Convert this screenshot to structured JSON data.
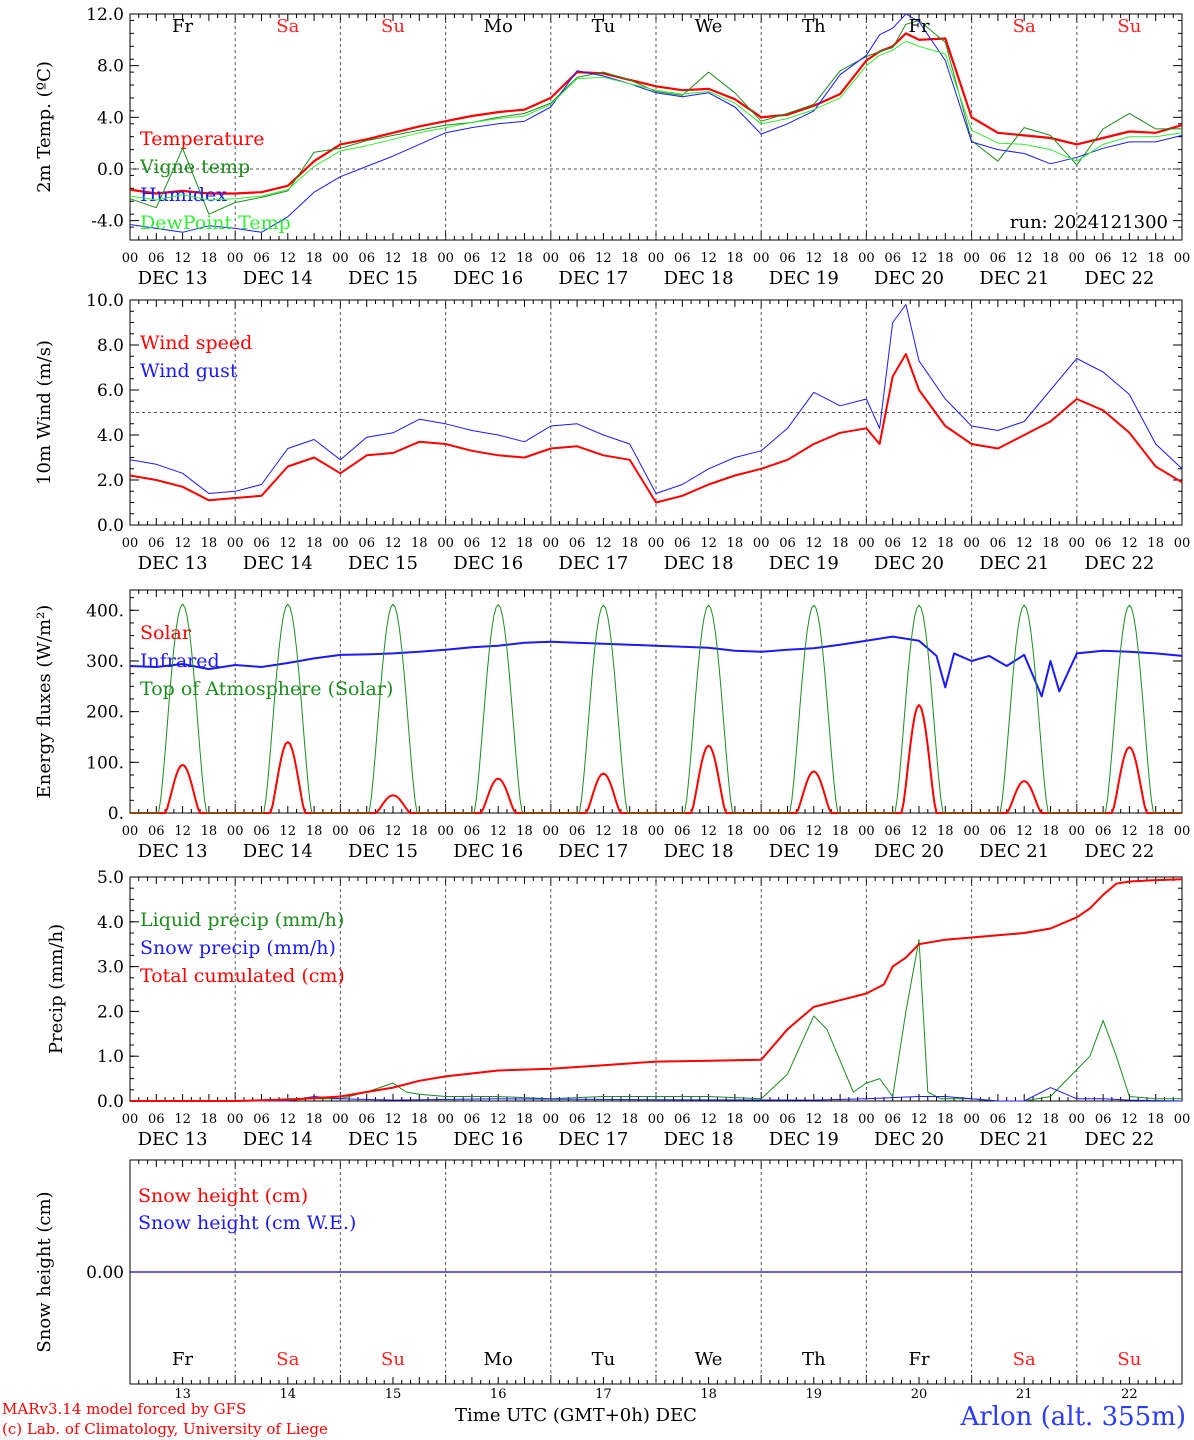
{
  "colors": {
    "red": "#ff0000",
    "green": "#1e8c1e",
    "blue": "#1a1aff",
    "light_green": "#33ee33",
    "weekend": "#ff2020",
    "station": "#2b3bff"
  },
  "days": [
    {
      "abbr": "Fr",
      "date": "DEC 13",
      "num": "13",
      "weekend": false
    },
    {
      "abbr": "Sa",
      "date": "DEC 14",
      "num": "14",
      "weekend": true
    },
    {
      "abbr": "Su",
      "date": "DEC 15",
      "num": "15",
      "weekend": true
    },
    {
      "abbr": "Mo",
      "date": "DEC 16",
      "num": "16",
      "weekend": false
    },
    {
      "abbr": "Tu",
      "date": "DEC 17",
      "num": "17",
      "weekend": false
    },
    {
      "abbr": "We",
      "date": "DEC 18",
      "num": "18",
      "weekend": false
    },
    {
      "abbr": "Th",
      "date": "DEC 19",
      "num": "19",
      "weekend": false
    },
    {
      "abbr": "Fr",
      "date": "DEC 20",
      "num": "20",
      "weekend": false
    },
    {
      "abbr": "Sa",
      "date": "DEC 21",
      "num": "21",
      "weekend": true
    },
    {
      "abbr": "Su",
      "date": "DEC 22",
      "num": "22",
      "weekend": true
    }
  ],
  "hour_labels": [
    "00",
    "06",
    "12",
    "18"
  ],
  "footer": {
    "model_line": "MARv3.14 model forced by GFS",
    "copyright_line": "(c) Lab. of Climatology, University of Liege",
    "time_axis_title": "Time UTC (GMT+0h) DEC",
    "station": "Arlon (alt. 355m)"
  },
  "chart_data": [
    {
      "type": "line",
      "ylabel": "2m Temp. (ºC)",
      "ylim": [
        -5.5,
        12.0
      ],
      "yticks": [
        -4.0,
        0.0,
        4.0,
        8.0,
        12.0
      ],
      "ytick_labels": [
        "-4.0",
        "0.0",
        "4.0",
        "8.0",
        "12.0"
      ],
      "dashed_reference": 0.0,
      "annotation": "run: 2024121300",
      "xlim_hours": [
        0,
        240
      ],
      "series": [
        {
          "name": "Temperature",
          "color": "red",
          "width": 2.2,
          "x": [
            0,
            6,
            12,
            18,
            24,
            30,
            36,
            42,
            48,
            54,
            60,
            66,
            72,
            78,
            84,
            90,
            96,
            102,
            108,
            114,
            120,
            126,
            132,
            138,
            144,
            150,
            156,
            162,
            168,
            171,
            174,
            177,
            180,
            186,
            192,
            198,
            204,
            210,
            216,
            222,
            228,
            234,
            240
          ],
          "y": [
            -1.6,
            -1.9,
            -1.7,
            -1.9,
            -1.9,
            -1.8,
            -1.3,
            0.6,
            1.9,
            2.3,
            2.8,
            3.3,
            3.7,
            4.1,
            4.4,
            4.6,
            5.5,
            7.5,
            7.4,
            6.9,
            6.4,
            6.1,
            6.2,
            5.4,
            4.0,
            4.2,
            4.9,
            5.8,
            8.4,
            9.1,
            9.5,
            10.5,
            10.0,
            10.1,
            4.0,
            2.8,
            2.6,
            2.4,
            1.9,
            2.4,
            2.9,
            2.8,
            3.4
          ]
        },
        {
          "name": "Vigne temp",
          "color": "green",
          "width": 1,
          "x": [
            0,
            6,
            12,
            18,
            24,
            30,
            36,
            42,
            48,
            54,
            60,
            66,
            72,
            78,
            84,
            90,
            96,
            102,
            108,
            114,
            120,
            126,
            132,
            138,
            144,
            150,
            156,
            162,
            168,
            171,
            174,
            177,
            180,
            186,
            192,
            198,
            204,
            210,
            216,
            222,
            228,
            234,
            240
          ],
          "y": [
            -2.3,
            -3.0,
            1.6,
            -3.5,
            -2.6,
            -2.2,
            -1.7,
            1.3,
            1.6,
            2.2,
            2.6,
            3.0,
            3.4,
            3.6,
            4.0,
            4.3,
            5.1,
            7.1,
            7.5,
            6.9,
            6.0,
            5.7,
            7.5,
            5.9,
            3.7,
            4.3,
            5.0,
            7.6,
            8.7,
            9.1,
            9.4,
            11.2,
            11.5,
            9.8,
            2.2,
            0.6,
            3.2,
            2.6,
            0.3,
            3.1,
            4.3,
            3.1,
            3.1
          ]
        },
        {
          "name": "Humidex",
          "color": "blue",
          "width": 1,
          "x": [
            0,
            6,
            12,
            18,
            24,
            30,
            36,
            42,
            48,
            54,
            60,
            66,
            72,
            78,
            84,
            90,
            96,
            102,
            108,
            114,
            120,
            126,
            132,
            138,
            144,
            150,
            156,
            162,
            168,
            171,
            174,
            177,
            180,
            186,
            192,
            198,
            204,
            210,
            216,
            222,
            228,
            234,
            240
          ],
          "y": [
            -4.3,
            -4.6,
            -4.9,
            -4.4,
            -4.6,
            -4.9,
            -3.7,
            -1.8,
            -0.6,
            0.2,
            1.0,
            1.9,
            2.8,
            3.2,
            3.5,
            3.7,
            4.8,
            7.6,
            7.2,
            6.6,
            5.9,
            5.6,
            5.9,
            4.8,
            2.7,
            3.5,
            4.5,
            7.3,
            8.8,
            10.4,
            10.9,
            12.0,
            11.4,
            8.4,
            2.1,
            1.5,
            1.2,
            0.4,
            0.9,
            1.6,
            2.1,
            2.1,
            2.6
          ]
        },
        {
          "name": "DewPoint Temp",
          "color": "light_green",
          "width": 1,
          "x": [
            0,
            6,
            12,
            18,
            24,
            30,
            36,
            42,
            48,
            54,
            60,
            66,
            72,
            78,
            84,
            90,
            96,
            102,
            108,
            114,
            120,
            126,
            132,
            138,
            144,
            150,
            156,
            162,
            168,
            171,
            174,
            177,
            180,
            186,
            192,
            198,
            204,
            210,
            216,
            222,
            228,
            234,
            240
          ],
          "y": [
            -2.1,
            -2.4,
            -2.0,
            -2.4,
            -2.3,
            -2.1,
            -1.6,
            0.2,
            1.4,
            1.8,
            2.3,
            2.8,
            3.2,
            3.6,
            3.9,
            4.1,
            5.0,
            7.0,
            7.1,
            6.6,
            6.1,
            5.8,
            6.0,
            5.1,
            3.5,
            3.9,
            4.6,
            5.5,
            8.0,
            8.8,
            9.2,
            9.9,
            9.5,
            8.9,
            3.0,
            2.0,
            1.9,
            1.5,
            0.6,
            1.9,
            2.5,
            2.5,
            2.8
          ]
        }
      ]
    },
    {
      "type": "line",
      "ylabel": "10m Wind (m/s)",
      "ylim": [
        0.0,
        10.0
      ],
      "yticks": [
        0.0,
        2.0,
        4.0,
        6.0,
        8.0,
        10.0
      ],
      "ytick_labels": [
        "0.0",
        "2.0",
        "4.0",
        "6.0",
        "8.0",
        "10.0"
      ],
      "dashed_reference": 5.0,
      "xlim_hours": [
        0,
        240
      ],
      "series": [
        {
          "name": "Wind speed",
          "color": "red",
          "width": 2,
          "x": [
            0,
            6,
            12,
            18,
            24,
            30,
            36,
            42,
            48,
            54,
            60,
            66,
            72,
            78,
            84,
            90,
            96,
            102,
            108,
            114,
            120,
            126,
            132,
            138,
            144,
            150,
            156,
            162,
            168,
            171,
            174,
            177,
            180,
            186,
            192,
            198,
            204,
            210,
            216,
            222,
            228,
            234,
            240
          ],
          "y": [
            2.2,
            2.0,
            1.7,
            1.1,
            1.2,
            1.3,
            2.6,
            3.0,
            2.3,
            3.1,
            3.2,
            3.7,
            3.6,
            3.3,
            3.1,
            3.0,
            3.4,
            3.5,
            3.1,
            2.9,
            1.0,
            1.3,
            1.8,
            2.2,
            2.5,
            2.9,
            3.6,
            4.1,
            4.3,
            3.6,
            6.6,
            7.6,
            6.0,
            4.4,
            3.6,
            3.4,
            4.0,
            4.6,
            5.6,
            5.1,
            4.1,
            2.6,
            1.9
          ]
        },
        {
          "name": "Wind gust",
          "color": "blue",
          "width": 1,
          "x": [
            0,
            6,
            12,
            18,
            24,
            30,
            36,
            42,
            48,
            54,
            60,
            66,
            72,
            78,
            84,
            90,
            96,
            102,
            108,
            114,
            120,
            126,
            132,
            138,
            144,
            150,
            156,
            162,
            168,
            171,
            174,
            177,
            180,
            186,
            192,
            198,
            204,
            210,
            216,
            222,
            228,
            234,
            240
          ],
          "y": [
            2.9,
            2.7,
            2.3,
            1.4,
            1.5,
            1.8,
            3.4,
            3.8,
            2.9,
            3.9,
            4.1,
            4.7,
            4.5,
            4.2,
            4.0,
            3.7,
            4.4,
            4.5,
            4.0,
            3.6,
            1.4,
            1.8,
            2.5,
            3.0,
            3.3,
            4.3,
            5.9,
            5.3,
            5.6,
            4.3,
            9.0,
            9.8,
            7.3,
            5.6,
            4.4,
            4.2,
            4.6,
            6.0,
            7.4,
            6.8,
            5.8,
            3.6,
            2.5
          ]
        }
      ]
    },
    {
      "type": "line",
      "ylabel": "Energy fluxes (W/m²)",
      "ylim": [
        0,
        440
      ],
      "yticks": [
        0,
        100,
        200,
        300,
        400
      ],
      "ytick_labels": [
        "0.",
        "100.",
        "200.",
        "300.",
        "400."
      ],
      "xlim_hours": [
        0,
        240
      ],
      "series": [
        {
          "name": "Solar",
          "color": "red",
          "width": 2,
          "peaks": [
            95,
            140,
            35,
            68,
            78,
            133,
            82,
            213,
            63,
            130
          ]
        },
        {
          "name": "Infrared",
          "color": "blue",
          "width": 2,
          "x": [
            0,
            6,
            12,
            18,
            24,
            30,
            36,
            42,
            48,
            54,
            60,
            66,
            72,
            78,
            84,
            90,
            96,
            102,
            108,
            114,
            120,
            126,
            132,
            138,
            144,
            150,
            156,
            162,
            168,
            174,
            180,
            184,
            186,
            188,
            192,
            196,
            200,
            204,
            208,
            210,
            212,
            216,
            222,
            228,
            234,
            240
          ],
          "y": [
            290,
            288,
            294,
            284,
            292,
            288,
            296,
            305,
            312,
            313,
            315,
            318,
            322,
            327,
            330,
            336,
            338,
            336,
            334,
            332,
            330,
            328,
            326,
            320,
            318,
            322,
            325,
            332,
            340,
            348,
            340,
            310,
            248,
            315,
            300,
            310,
            290,
            312,
            230,
            300,
            240,
            315,
            320,
            318,
            315,
            310
          ]
        },
        {
          "name": "Top of Atmosphere (Solar)",
          "color": "green",
          "width": 1,
          "peaks": [
            412,
            412,
            412,
            411,
            410,
            410,
            410,
            410,
            410,
            410
          ]
        }
      ]
    },
    {
      "type": "line",
      "ylabel": "Precip (mm/h)",
      "ylim": [
        0.0,
        5.0
      ],
      "yticks": [
        0.0,
        1.0,
        2.0,
        3.0,
        4.0,
        5.0
      ],
      "ytick_labels": [
        "0.0",
        "1.0",
        "2.0",
        "3.0",
        "4.0",
        "5.0"
      ],
      "xlim_hours": [
        0,
        240
      ],
      "series": [
        {
          "name": "Liquid precip (mm/h)",
          "color": "green",
          "width": 1,
          "x": [
            0,
            24,
            36,
            48,
            54,
            60,
            63,
            66,
            72,
            84,
            96,
            108,
            120,
            132,
            144,
            150,
            156,
            159,
            162,
            165,
            168,
            171,
            174,
            177,
            180,
            182,
            185,
            188,
            192,
            198,
            204,
            210,
            216,
            219,
            222,
            225,
            228,
            234,
            240
          ],
          "y": [
            0,
            0,
            0.05,
            0.05,
            0.2,
            0.4,
            0.2,
            0.15,
            0.1,
            0.1,
            0.05,
            0.1,
            0.1,
            0.1,
            0.05,
            0.6,
            1.9,
            1.6,
            0.9,
            0.2,
            0.4,
            0.5,
            0.1,
            2.0,
            3.6,
            0.2,
            0.05,
            0.05,
            0.05,
            0,
            0,
            0.1,
            0.7,
            1.0,
            1.8,
            1.0,
            0.1,
            0.05,
            0.05
          ]
        },
        {
          "name": "Snow precip (mm/h)",
          "color": "blue",
          "width": 1,
          "x": [
            0,
            36,
            42,
            48,
            60,
            84,
            120,
            156,
            168,
            180,
            186,
            192,
            198,
            204,
            210,
            216,
            222,
            228,
            240
          ],
          "y": [
            0,
            0,
            0.1,
            0.05,
            0.02,
            0.05,
            0.03,
            0.02,
            0.05,
            0.1,
            0.1,
            0.05,
            0,
            0,
            0.3,
            0.05,
            0.05,
            0.02,
            0
          ]
        },
        {
          "name": "Total cumulated (cm)",
          "color": "red",
          "width": 2,
          "x": [
            0,
            24,
            36,
            48,
            54,
            60,
            66,
            72,
            84,
            96,
            108,
            120,
            132,
            144,
            150,
            156,
            162,
            168,
            172,
            174,
            177,
            180,
            186,
            192,
            198,
            204,
            210,
            216,
            219,
            222,
            225,
            228,
            234,
            240
          ],
          "y": [
            0,
            0,
            0.03,
            0.1,
            0.2,
            0.3,
            0.45,
            0.55,
            0.68,
            0.72,
            0.8,
            0.88,
            0.9,
            0.92,
            1.6,
            2.1,
            2.25,
            2.4,
            2.6,
            3.0,
            3.2,
            3.5,
            3.6,
            3.65,
            3.7,
            3.75,
            3.85,
            4.1,
            4.3,
            4.6,
            4.85,
            4.9,
            4.93,
            4.95
          ]
        }
      ]
    },
    {
      "type": "line",
      "ylabel": "Snow height (cm)",
      "ylim": [
        -1.0,
        1.0
      ],
      "yticks": [
        0.0
      ],
      "ytick_labels": [
        "0.00"
      ],
      "xlim_hours": [
        0,
        240
      ],
      "series": [
        {
          "name": "Snow height (cm)",
          "color": "red",
          "width": 1.2,
          "x": [
            0,
            240
          ],
          "y": [
            0.0,
            0.0
          ]
        },
        {
          "name": "Snow height (cm W.E.)",
          "color": "blue",
          "width": 1.2,
          "x": [
            0,
            240
          ],
          "y": [
            0.0,
            0.0
          ]
        }
      ]
    }
  ]
}
